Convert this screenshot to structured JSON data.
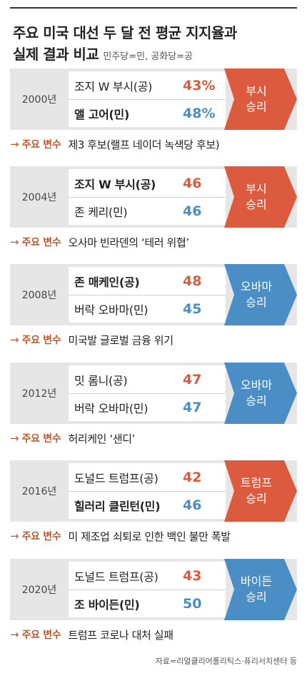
{
  "title_line1": "주요 미국 대선 두 달 전 평균 지지율과",
  "title_line2": "실제 결과 비교",
  "legend": "민주당=민, 공화당=공",
  "variable_label": "주요 변수",
  "arrow_symbol": "→",
  "colors": {
    "republican": "#dc5a3e",
    "democrat": "#4a8ec5",
    "card_bg": "#e6e6e6"
  },
  "elections": [
    {
      "year": "2000년",
      "cand1": "조지 W 부시(공)",
      "pct1": "43%",
      "cand2": "앨 고어(민)",
      "pct2": "48%",
      "bold": 2,
      "result1": "부시",
      "result2": "승리",
      "winner": "republican",
      "variable": "제3 후보(랠프 네이더 녹색당 후보)"
    },
    {
      "year": "2004년",
      "cand1": "조지 W 부시(공)",
      "pct1": "46",
      "cand2": "존 케리(민)",
      "pct2": "46",
      "bold": 1,
      "result1": "부시",
      "result2": "승리",
      "winner": "republican",
      "variable": "오사마 빈라덴의 ‘테러 위협’"
    },
    {
      "year": "2008년",
      "cand1": "존 매케인(공)",
      "pct1": "48",
      "cand2": "버락 오바마(민)",
      "pct2": "45",
      "bold": 1,
      "result1": "오바마",
      "result2": "승리",
      "winner": "democrat",
      "variable": "미국발 글로벌 금융 위기"
    },
    {
      "year": "2012년",
      "cand1": "밋 롬니(공)",
      "pct1": "47",
      "cand2": "버락 오바마(민)",
      "pct2": "47",
      "bold": 0,
      "result1": "오바마",
      "result2": "승리",
      "winner": "democrat",
      "variable": "허리케인 ‘샌디’"
    },
    {
      "year": "2016년",
      "cand1": "도널드 트럼프(공)",
      "pct1": "42",
      "cand2": "힐러리 클린턴(민)",
      "pct2": "46",
      "bold": 2,
      "result1": "트럼프",
      "result2": "승리",
      "winner": "republican",
      "variable": "미 제조업 쇠퇴로 인한 백인 불만 폭발"
    },
    {
      "year": "2020년",
      "cand1": "도널드 트럼프(공)",
      "pct1": "43",
      "cand2": "조 바이든(민)",
      "pct2": "50",
      "bold": 2,
      "result1": "바이든",
      "result2": "승리",
      "winner": "democrat",
      "variable": "트럼프 코로나 대처 실패"
    }
  ],
  "source": "자료=리얼클리어폴리틱스·퓨리서치센터 등"
}
